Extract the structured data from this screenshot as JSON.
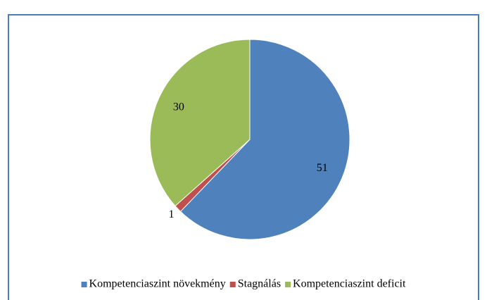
{
  "chart_data": {
    "type": "pie",
    "categories": [
      "Kompetenciaszint növekmény",
      "Stagnálás",
      "Kompetenciaszint deficit"
    ],
    "values": [
      51,
      1,
      30
    ],
    "colors": [
      "#4f81bd",
      "#c0504d",
      "#9bbb59"
    ],
    "legend": "bottom"
  }
}
